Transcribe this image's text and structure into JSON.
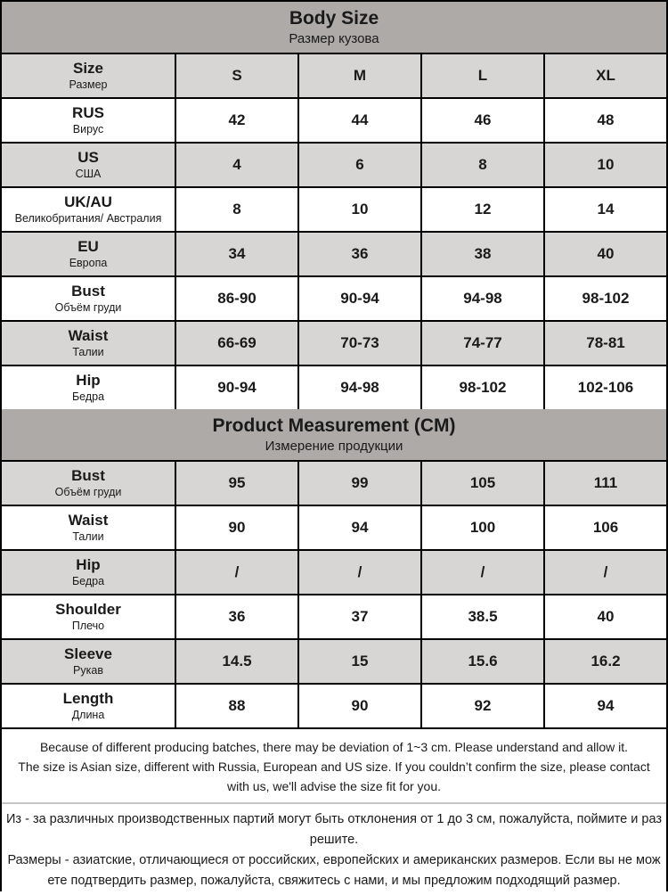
{
  "colors": {
    "section_header_bg": "#adaaa8",
    "row_shaded_bg": "#d8d6d5",
    "row_bg": "#ffffff",
    "border": "#000000",
    "notes_divider": "#c7c5c4",
    "text": "#1a1a1a"
  },
  "chart_data": [
    {
      "type": "table",
      "title": "Body Size",
      "subtitle": "Размер кузова",
      "header": {
        "label_en": "Size",
        "label_ru": "Размер",
        "columns": [
          "S",
          "M",
          "L",
          "XL"
        ]
      },
      "rows": [
        {
          "label_en": "RUS",
          "label_ru": "Вирус",
          "values": [
            "42",
            "44",
            "46",
            "48"
          ]
        },
        {
          "label_en": "US",
          "label_ru": "США",
          "values": [
            "4",
            "6",
            "8",
            "10"
          ]
        },
        {
          "label_en": "UK/AU",
          "label_ru": "Великобритания/ Австралия",
          "values": [
            "8",
            "10",
            "12",
            "14"
          ]
        },
        {
          "label_en": "EU",
          "label_ru": "Европа",
          "values": [
            "34",
            "36",
            "38",
            "40"
          ]
        },
        {
          "label_en": "Bust",
          "label_ru": "Объём груди",
          "values": [
            "86-90",
            "90-94",
            "94-98",
            "98-102"
          ]
        },
        {
          "label_en": "Waist",
          "label_ru": "Талии",
          "values": [
            "66-69",
            "70-73",
            "74-77",
            "78-81"
          ]
        },
        {
          "label_en": "Hip",
          "label_ru": "Бедра",
          "values": [
            "90-94",
            "94-98",
            "98-102",
            "102-106"
          ]
        }
      ]
    },
    {
      "type": "table",
      "title": "Product Measurement (CM)",
      "subtitle": "Измерение продукции",
      "columns": [
        "S",
        "M",
        "L",
        "XL"
      ],
      "rows": [
        {
          "label_en": "Bust",
          "label_ru": "Объём груди",
          "values": [
            "95",
            "99",
            "105",
            "111"
          ]
        },
        {
          "label_en": "Waist",
          "label_ru": "Талии",
          "values": [
            "90",
            "94",
            "100",
            "106"
          ]
        },
        {
          "label_en": "Hip",
          "label_ru": "Бедра",
          "values": [
            "/",
            "/",
            "/",
            "/"
          ]
        },
        {
          "label_en": "Shoulder",
          "label_ru": "Плечо",
          "values": [
            "36",
            "37",
            "38.5",
            "40"
          ]
        },
        {
          "label_en": "Sleeve",
          "label_ru": "Рукав",
          "values": [
            "14.5",
            "15",
            "15.6",
            "16.2"
          ]
        },
        {
          "label_en": "Length",
          "label_ru": "Длина",
          "values": [
            "88",
            "90",
            "92",
            "94"
          ]
        }
      ]
    }
  ],
  "notes": {
    "english": [
      "Because of different producing batches, there may be deviation of 1~3 cm. Please understand and allow it.",
      "The size is Asian size, different with Russia, European and US size. If you couldn’t confirm the size, please contact with us, we'll advise the size fit for you."
    ],
    "russian": [
      "Из - за различных производственных партий могут быть отклонения от 1 до 3 см, пожалуйста, поймите и разрешите.",
      "Размеры - азиатские, отличающиеся от российских, европейских и американских размеров. Если вы не можете подтвердить размер, пожалуйста, свяжитесь с нами, и мы предложим подходящий размер."
    ]
  }
}
